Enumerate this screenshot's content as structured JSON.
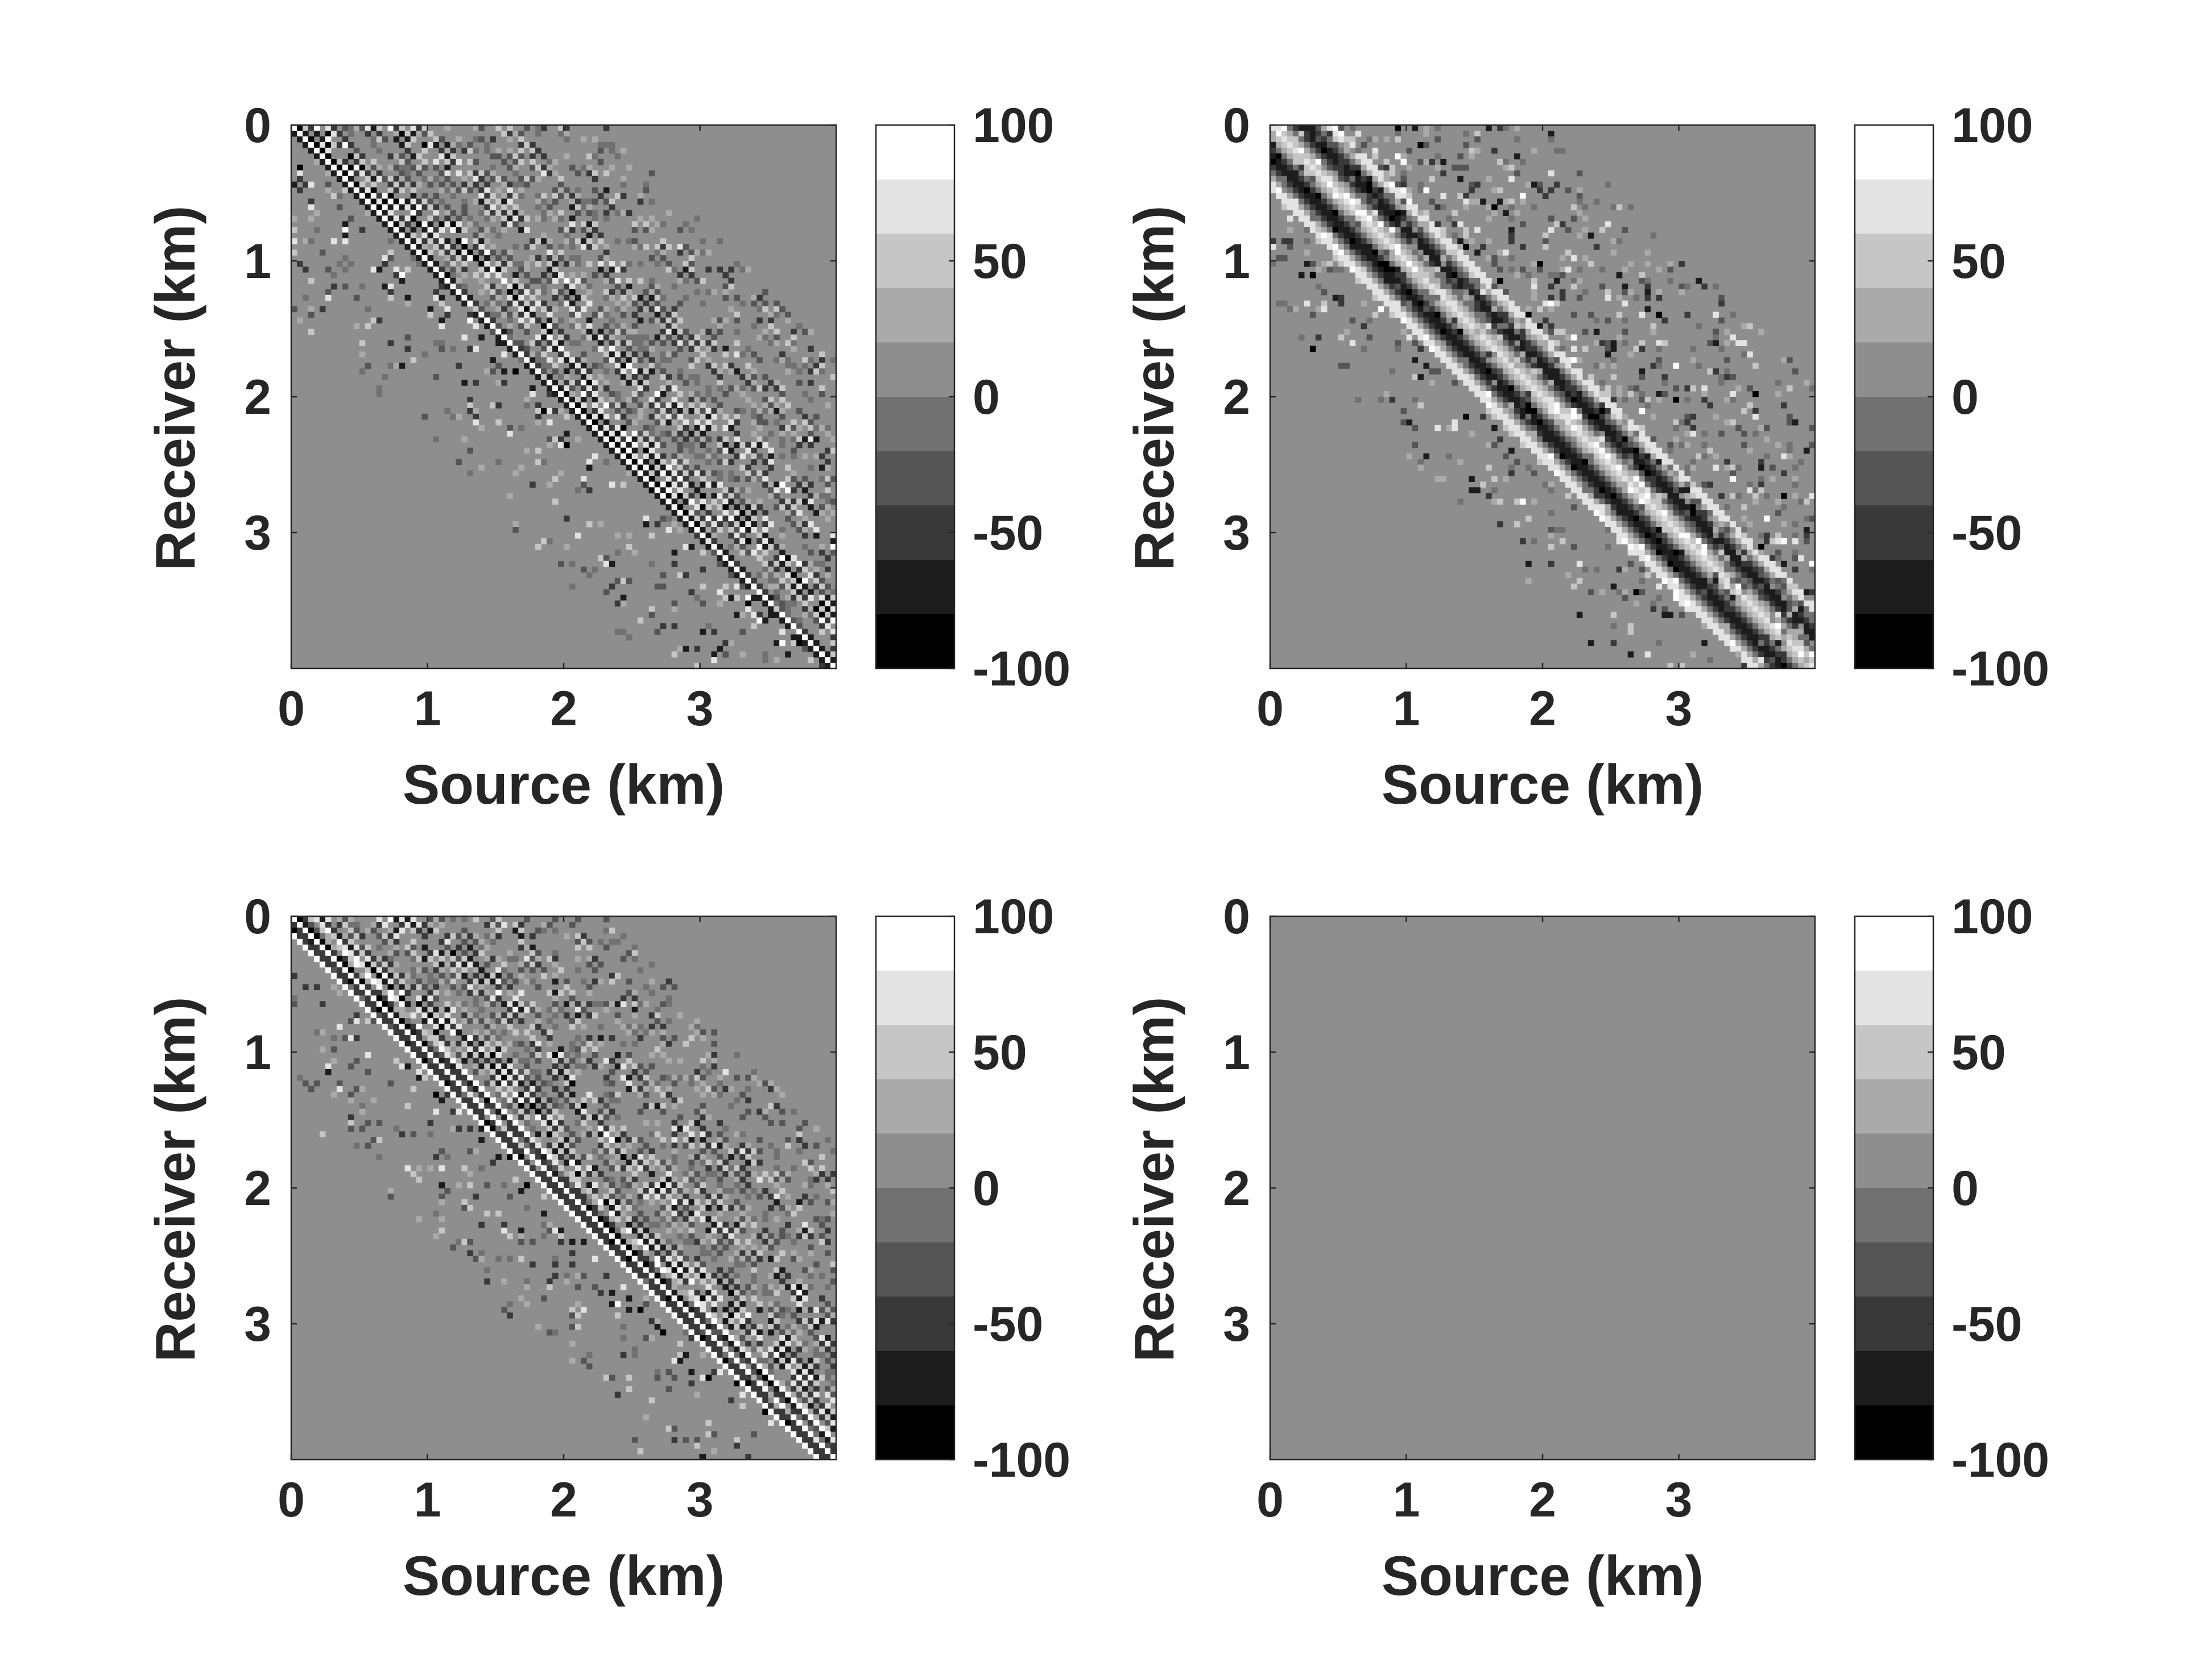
{
  "figure": {
    "background": "#ffffff",
    "text_color": "#262626",
    "axis_color": "#262626"
  },
  "chart_data": [
    {
      "type": "heatmap",
      "colormap": "gray",
      "colormap_levels": 10,
      "panel": "top-left",
      "title": "",
      "xlabel": "Source (km)",
      "ylabel": "Receiver (km)",
      "xlim": [
        0,
        4
      ],
      "ylim": [
        0,
        4
      ],
      "y_reversed": true,
      "xticks": [
        "0",
        "1",
        "2",
        "3"
      ],
      "yticks": [
        "0",
        "1",
        "2",
        "3"
      ],
      "color_limits": [
        -100,
        100
      ],
      "colorbar_ticks": [
        "100",
        "50",
        "0",
        "-50",
        "-100"
      ],
      "pattern": {
        "seed": 11,
        "diag_amp": 100,
        "diag_band": 0.12,
        "stripe_amp": 55,
        "noise_amp": 25,
        "upper_extent": 2.3,
        "lower_extent": 1.4,
        "upper_fill": 0.75,
        "lower_fill": 0.2,
        "stripe_period": 0.09
      }
    },
    {
      "type": "heatmap",
      "colormap": "gray",
      "colormap_levels": 10,
      "panel": "top-right",
      "title": "",
      "xlabel": "Source (km)",
      "ylabel": "Receiver (km)",
      "xlim": [
        0,
        4
      ],
      "ylim": [
        0,
        4
      ],
      "y_reversed": true,
      "xticks": [
        "0",
        "1",
        "2",
        "3"
      ],
      "yticks": [
        "0",
        "1",
        "2",
        "3"
      ],
      "color_limits": [
        -100,
        100
      ],
      "colorbar_ticks": [
        "100",
        "50",
        "0",
        "-50",
        "-100"
      ],
      "pattern": {
        "seed": 23,
        "diag_amp": 70,
        "diag_band": 0.5,
        "stripe_amp": 35,
        "noise_amp": 60,
        "upper_extent": 2.1,
        "lower_extent": 1.5,
        "upper_fill": 0.35,
        "lower_fill": 0.2,
        "stripe_period": 0.045
      }
    },
    {
      "type": "heatmap",
      "colormap": "gray",
      "colormap_levels": 10,
      "panel": "bottom-left",
      "title": "",
      "xlabel": "Source (km)",
      "ylabel": "Receiver (km)",
      "xlim": [
        0,
        4
      ],
      "ylim": [
        0,
        4
      ],
      "y_reversed": true,
      "xticks": [
        "0",
        "1",
        "2",
        "3"
      ],
      "yticks": [
        "0",
        "1",
        "2",
        "3"
      ],
      "color_limits": [
        -100,
        100
      ],
      "colorbar_ticks": [
        "100",
        "50",
        "0",
        "-50",
        "-100"
      ],
      "pattern": {
        "seed": 37,
        "diag_amp": 100,
        "diag_band": 0.14,
        "stripe_amp": 55,
        "noise_amp": 25,
        "upper_extent": 2.3,
        "lower_extent": 1.4,
        "upper_fill": 0.75,
        "lower_fill": 0.2,
        "stripe_period": 0.09
      }
    },
    {
      "type": "heatmap",
      "colormap": "gray",
      "colormap_levels": 10,
      "panel": "bottom-right",
      "title": "",
      "xlabel": "Source (km)",
      "ylabel": "Receiver (km)",
      "xlim": [
        0,
        4
      ],
      "ylim": [
        0,
        4
      ],
      "y_reversed": true,
      "xticks": [
        "0",
        "1",
        "2",
        "3"
      ],
      "yticks": [
        "0",
        "1",
        "2",
        "3"
      ],
      "color_limits": [
        -100,
        100
      ],
      "colorbar_ticks": [
        "100",
        "50",
        "0",
        "-50",
        "-100"
      ],
      "constant_value": 0,
      "pattern": null
    }
  ]
}
